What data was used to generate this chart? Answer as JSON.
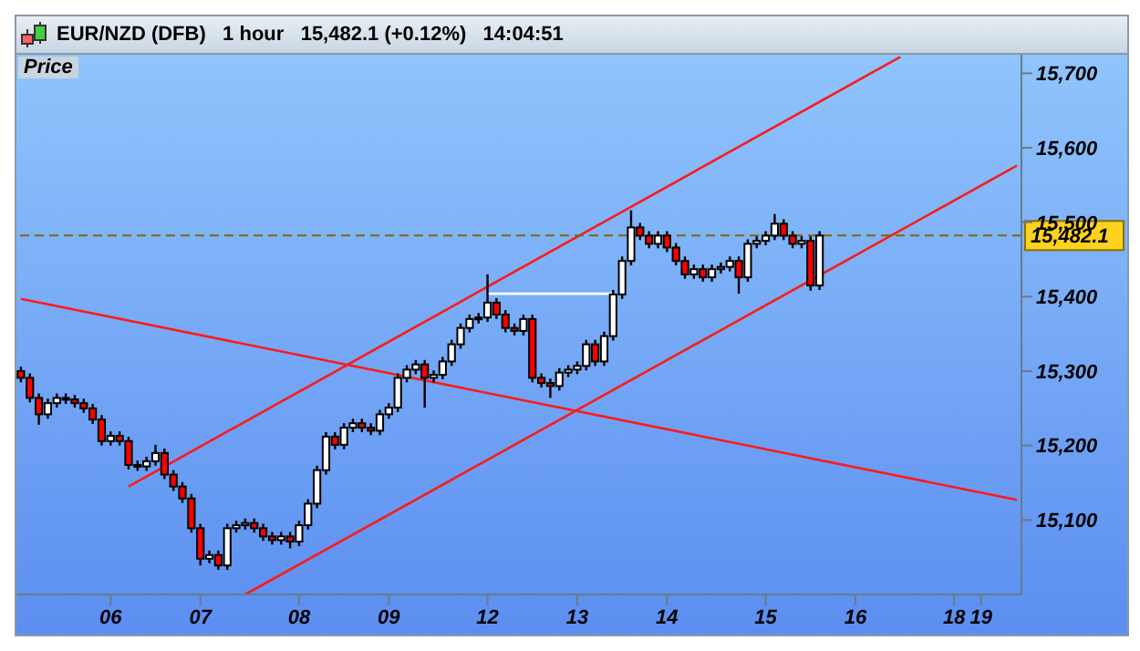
{
  "chart_data": {
    "type": "candlestick",
    "title": "EUR/NZD (DFB)   1 hour   15,482.1 (+0.12%)   14:04:51",
    "annotations": [
      "Price"
    ],
    "categories": [
      null,
      null,
      null,
      null,
      null,
      null,
      null,
      null,
      null,
      null,
      "06",
      null,
      null,
      null,
      null,
      null,
      null,
      null,
      null,
      null,
      "07",
      null,
      null,
      null,
      null,
      null,
      null,
      null,
      null,
      null,
      null,
      "08",
      null,
      null,
      null,
      null,
      null,
      null,
      null,
      null,
      null,
      "09",
      null,
      null,
      null,
      null,
      null,
      null,
      null,
      null,
      null,
      null,
      "12",
      null,
      null,
      null,
      null,
      null,
      null,
      null,
      null,
      null,
      "13",
      null,
      null,
      null,
      null,
      null,
      null,
      null,
      null,
      null,
      "14",
      null,
      null,
      null,
      null,
      null,
      null,
      null,
      null,
      null,
      null,
      "15",
      null,
      null,
      null,
      null,
      null,
      null,
      null,
      null,
      null,
      "16",
      null,
      null,
      null,
      null,
      null,
      null,
      null,
      null,
      null,
      null,
      "18",
      null,
      null,
      "19",
      null,
      null,
      null,
      null
    ],
    "ylim": [
      15000,
      15725
    ],
    "yticks": [
      {
        "value": 15100,
        "label": "15,100"
      },
      {
        "value": 15200,
        "label": "15,200"
      },
      {
        "value": 15300,
        "label": "15,300"
      },
      {
        "value": 15400,
        "label": "15,400"
      },
      {
        "value": 15500,
        "label": "15,500"
      },
      {
        "value": 15600,
        "label": "15,600"
      },
      {
        "value": 15700,
        "label": "15,700"
      }
    ],
    "ohlc": [
      [
        15300,
        15306,
        15285,
        15291
      ],
      [
        15291,
        15297,
        15258,
        15264
      ],
      [
        15264,
        15270,
        15228,
        15242
      ],
      [
        15242,
        15263,
        15236,
        15257
      ],
      [
        15257,
        15270,
        15251,
        15264
      ],
      [
        15264,
        15270,
        15256,
        15262
      ],
      [
        15262,
        15268,
        15251,
        15257
      ],
      [
        15257,
        15263,
        15244,
        15250
      ],
      [
        15250,
        15256,
        15229,
        15235
      ],
      [
        15235,
        15241,
        15200,
        15206
      ],
      [
        15206,
        15219,
        15200,
        15213
      ],
      [
        15213,
        15219,
        15200,
        15206
      ],
      [
        15206,
        15212,
        15168,
        15174
      ],
      [
        15174,
        15180,
        15166,
        15172
      ],
      [
        15172,
        15185,
        15166,
        15179
      ],
      [
        15179,
        15201,
        15173,
        15190
      ],
      [
        15190,
        15196,
        15155,
        15161
      ],
      [
        15161,
        15167,
        15139,
        15145
      ],
      [
        15145,
        15151,
        15123,
        15129
      ],
      [
        15129,
        15135,
        15083,
        15089
      ],
      [
        15089,
        15095,
        15039,
        15048
      ],
      [
        15048,
        15059,
        15042,
        15053
      ],
      [
        15053,
        15059,
        15033,
        15039
      ],
      [
        15039,
        15095,
        15033,
        15089
      ],
      [
        15089,
        15099,
        15083,
        15093
      ],
      [
        15093,
        15102,
        15087,
        15096
      ],
      [
        15096,
        15102,
        15083,
        15089
      ],
      [
        15089,
        15095,
        15072,
        15078
      ],
      [
        15078,
        15084,
        15067,
        15073
      ],
      [
        15073,
        15084,
        15067,
        15078
      ],
      [
        15078,
        15084,
        15062,
        15071
      ],
      [
        15071,
        15099,
        15065,
        15093
      ],
      [
        15093,
        15128,
        15087,
        15122
      ],
      [
        15122,
        15173,
        15116,
        15167
      ],
      [
        15167,
        15218,
        15161,
        15212
      ],
      [
        15212,
        15218,
        15195,
        15201
      ],
      [
        15201,
        15230,
        15195,
        15224
      ],
      [
        15224,
        15236,
        15218,
        15230
      ],
      [
        15230,
        15236,
        15218,
        15224
      ],
      [
        15224,
        15230,
        15214,
        15220
      ],
      [
        15220,
        15248,
        15214,
        15242
      ],
      [
        15242,
        15257,
        15236,
        15251
      ],
      [
        15251,
        15297,
        15245,
        15291
      ],
      [
        15291,
        15308,
        15285,
        15302
      ],
      [
        15302,
        15315,
        15296,
        15309
      ],
      [
        15309,
        15315,
        15251,
        15291
      ],
      [
        15291,
        15301,
        15285,
        15295
      ],
      [
        15295,
        15319,
        15289,
        15313
      ],
      [
        15313,
        15342,
        15307,
        15336
      ],
      [
        15336,
        15364,
        15330,
        15358
      ],
      [
        15358,
        15376,
        15352,
        15370
      ],
      [
        15370,
        15378,
        15364,
        15372
      ],
      [
        15372,
        15430,
        15366,
        15392
      ],
      [
        15392,
        15398,
        15370,
        15376
      ],
      [
        15376,
        15382,
        15352,
        15358
      ],
      [
        15358,
        15364,
        15348,
        15354
      ],
      [
        15354,
        15376,
        15348,
        15370
      ],
      [
        15370,
        15376,
        15285,
        15291
      ],
      [
        15291,
        15297,
        15278,
        15284
      ],
      [
        15284,
        15290,
        15264,
        15280
      ],
      [
        15280,
        15304,
        15274,
        15298
      ],
      [
        15298,
        15308,
        15292,
        15302
      ],
      [
        15302,
        15313,
        15296,
        15307
      ],
      [
        15307,
        15342,
        15301,
        15336
      ],
      [
        15336,
        15342,
        15307,
        15313
      ],
      [
        15313,
        15353,
        15307,
        15347
      ],
      [
        15347,
        15409,
        15341,
        15403
      ],
      [
        15403,
        15454,
        15397,
        15448
      ],
      [
        15448,
        15516,
        15442,
        15493
      ],
      [
        15493,
        15499,
        15476,
        15482
      ],
      [
        15482,
        15488,
        15465,
        15471
      ],
      [
        15471,
        15488,
        15465,
        15482
      ],
      [
        15482,
        15488,
        15460,
        15466
      ],
      [
        15466,
        15472,
        15442,
        15448
      ],
      [
        15448,
        15454,
        15424,
        15430
      ],
      [
        15430,
        15443,
        15424,
        15437
      ],
      [
        15437,
        15443,
        15420,
        15426
      ],
      [
        15426,
        15443,
        15420,
        15437
      ],
      [
        15437,
        15446,
        15431,
        15440
      ],
      [
        15440,
        15454,
        15434,
        15448
      ],
      [
        15448,
        15454,
        15404,
        15426
      ],
      [
        15426,
        15477,
        15420,
        15471
      ],
      [
        15471,
        15481,
        15465,
        15475
      ],
      [
        15475,
        15488,
        15469,
        15482
      ],
      [
        15482,
        15511,
        15476,
        15498
      ],
      [
        15498,
        15504,
        15476,
        15482
      ],
      [
        15482,
        15488,
        15465,
        15471
      ],
      [
        15471,
        15481,
        15465,
        15475
      ],
      [
        15475,
        15481,
        15408,
        15415
      ],
      [
        15415,
        15488,
        15409,
        15482.1
      ],
      null,
      null,
      null,
      null,
      null,
      null,
      null,
      null,
      null,
      null,
      null,
      null,
      null,
      null,
      null,
      null,
      null,
      null,
      null,
      null,
      null,
      null
    ],
    "series": [
      {
        "type": "line",
        "color": "#ff1a1a",
        "values": [
          null,
          null,
          null,
          null,
          null,
          null,
          null,
          null,
          null,
          null,
          null,
          null,
          15145,
          null,
          null,
          null,
          null,
          null,
          null,
          null,
          null,
          null,
          null,
          null,
          null,
          null,
          null,
          null,
          null,
          null,
          null,
          null,
          null,
          null,
          null,
          null,
          null,
          null,
          null,
          null,
          null,
          null,
          null,
          null,
          null,
          null,
          null,
          null,
          null,
          null,
          null,
          null,
          null,
          null,
          null,
          null,
          null,
          null,
          null,
          null,
          null,
          null,
          null,
          null,
          null,
          null,
          null,
          null,
          null,
          null,
          null,
          null,
          null,
          null,
          null,
          null,
          null,
          null,
          null,
          null,
          null,
          null,
          null,
          null,
          null,
          null,
          null,
          null,
          null,
          null,
          null,
          null,
          null,
          null,
          null,
          null,
          null,
          null,
          15722,
          null,
          null,
          null,
          null,
          null,
          null,
          null,
          null,
          null,
          null,
          null,
          null,
          null
        ]
      },
      {
        "type": "line",
        "color": "#ff1a1a",
        "values": [
          null,
          null,
          null,
          null,
          null,
          null,
          null,
          null,
          null,
          null,
          null,
          null,
          null,
          null,
          null,
          null,
          null,
          null,
          null,
          null,
          null,
          null,
          null,
          null,
          null,
          15000,
          null,
          null,
          null,
          null,
          null,
          null,
          null,
          null,
          null,
          null,
          null,
          null,
          null,
          null,
          null,
          null,
          null,
          null,
          null,
          null,
          null,
          null,
          null,
          null,
          null,
          null,
          null,
          null,
          null,
          null,
          null,
          null,
          null,
          null,
          null,
          null,
          null,
          null,
          null,
          null,
          null,
          null,
          null,
          null,
          null,
          null,
          null,
          null,
          null,
          null,
          null,
          null,
          null,
          null,
          null,
          null,
          null,
          null,
          null,
          null,
          null,
          null,
          null,
          null,
          null,
          null,
          null,
          null,
          null,
          null,
          null,
          null,
          null,
          null,
          null,
          null,
          null,
          null,
          null,
          null,
          null,
          null,
          null,
          null,
          null,
          15576
        ]
      },
      {
        "type": "line",
        "color": "#ff1a1a",
        "values": [
          15397,
          null,
          null,
          null,
          null,
          null,
          null,
          null,
          null,
          null,
          null,
          null,
          null,
          null,
          null,
          null,
          null,
          null,
          null,
          null,
          null,
          null,
          null,
          null,
          null,
          null,
          null,
          null,
          null,
          null,
          null,
          null,
          null,
          null,
          null,
          null,
          null,
          null,
          null,
          null,
          null,
          null,
          null,
          null,
          null,
          null,
          null,
          null,
          null,
          null,
          null,
          null,
          null,
          null,
          null,
          null,
          null,
          null,
          null,
          null,
          null,
          null,
          null,
          null,
          null,
          null,
          null,
          null,
          null,
          null,
          null,
          null,
          null,
          null,
          null,
          null,
          null,
          null,
          null,
          null,
          null,
          null,
          null,
          null,
          null,
          null,
          null,
          null,
          null,
          null,
          null,
          null,
          null,
          null,
          null,
          null,
          null,
          null,
          null,
          null,
          null,
          null,
          null,
          null,
          null,
          null,
          null,
          null,
          null,
          null,
          null,
          15127
        ]
      },
      {
        "type": "line",
        "color": "#ffffff",
        "values": [
          null,
          null,
          null,
          null,
          null,
          null,
          null,
          null,
          null,
          null,
          null,
          null,
          null,
          null,
          null,
          null,
          null,
          null,
          null,
          null,
          null,
          null,
          null,
          null,
          null,
          null,
          null,
          null,
          null,
          null,
          null,
          null,
          null,
          null,
          null,
          null,
          null,
          null,
          null,
          null,
          null,
          null,
          null,
          null,
          null,
          null,
          null,
          null,
          null,
          null,
          null,
          null,
          15404,
          null,
          null,
          null,
          null,
          null,
          null,
          null,
          null,
          null,
          null,
          null,
          null,
          null,
          15404,
          null,
          null,
          null,
          null,
          null,
          null,
          null,
          null,
          null,
          null,
          null,
          null,
          null,
          null,
          null,
          null,
          null,
          null,
          null,
          null,
          null,
          null,
          null,
          null,
          null,
          null,
          null,
          null,
          null,
          null,
          null,
          null,
          null,
          null,
          null,
          null,
          null,
          null,
          null,
          null,
          null,
          null,
          null,
          null,
          null
        ]
      }
    ],
    "ref_lines": [
      {
        "axis": "y",
        "value": 15482.1,
        "label": "15,482.1",
        "color": "#806a00",
        "line_style": "dashed"
      }
    ]
  }
}
